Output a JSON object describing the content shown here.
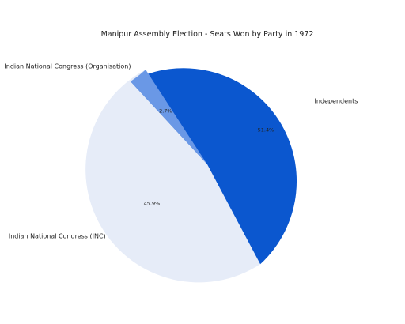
{
  "chart_data": {
    "type": "pie",
    "title": "Manipur Assembly Election - Seats Won by Party in 1972",
    "slices": [
      {
        "label": "Independents",
        "value": 51.4,
        "pct_label": "51.4%",
        "color": "#e6ecf8"
      },
      {
        "label": "Indian National Congress (INC)",
        "value": 45.9,
        "pct_label": "45.9%",
        "color": "#0b57cf"
      },
      {
        "label": "Indian National Congress (Organisation)",
        "value": 2.7,
        "pct_label": "2.7%",
        "color": "#6a98e6"
      }
    ]
  }
}
